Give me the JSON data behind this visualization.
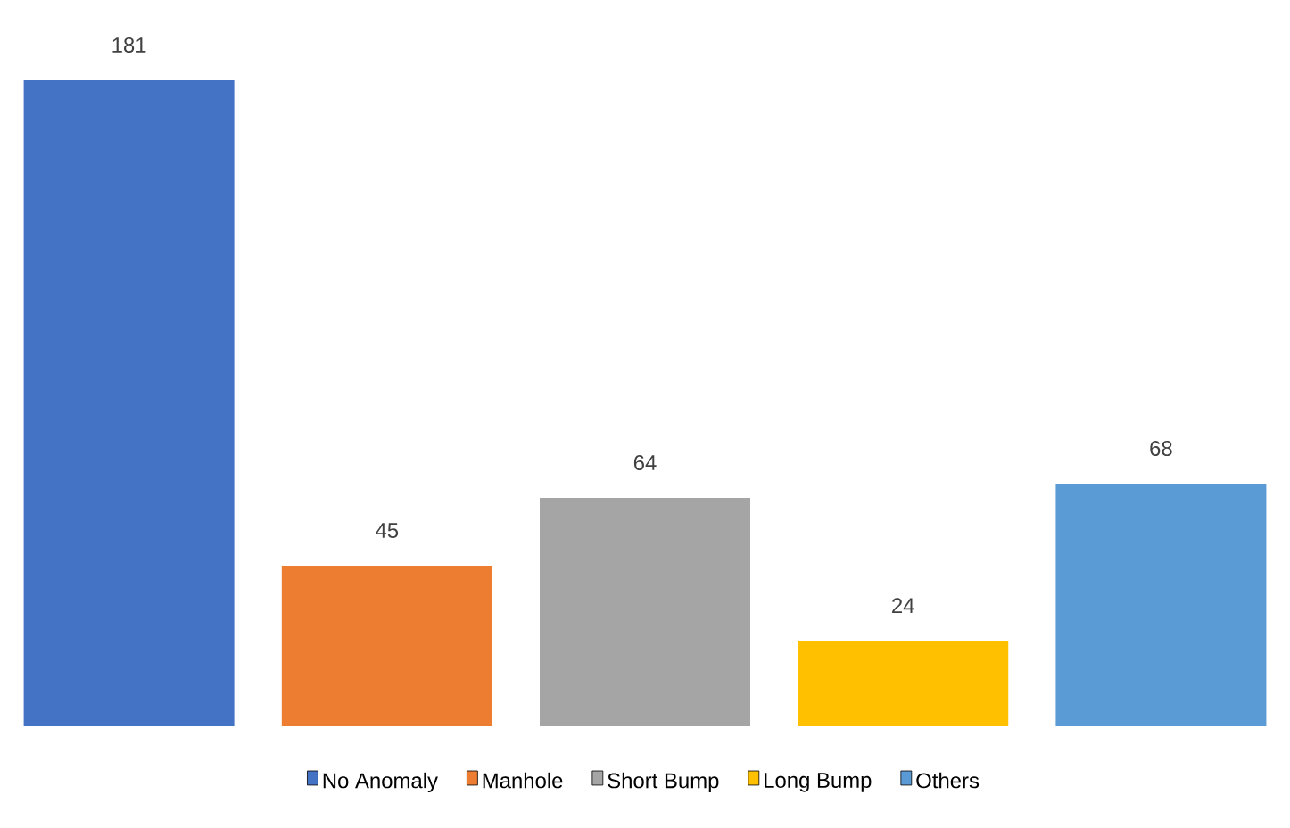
{
  "chart_data": {
    "type": "bar",
    "categories": [
      null,
      null,
      null,
      null,
      null
    ],
    "data_labels": true,
    "stacked": true,
    "legend": "bottom",
    "series": [
      {
        "name": "No Anomaly",
        "color": "#4472c4",
        "values": [
          181,
          null,
          null,
          null,
          null
        ]
      },
      {
        "name": "Manhole",
        "color": "#ed7d31",
        "values": [
          null,
          45,
          null,
          null,
          null
        ]
      },
      {
        "name": "Short Bump",
        "color": "#a5a5a5",
        "values": [
          null,
          null,
          64,
          null,
          null
        ]
      },
      {
        "name": "Long Bump",
        "color": "#ffc000",
        "values": [
          null,
          null,
          null,
          24,
          null
        ]
      },
      {
        "name": "Others",
        "color": "#5b9bd5",
        "values": [
          null,
          null,
          null,
          null,
          68
        ]
      }
    ]
  }
}
